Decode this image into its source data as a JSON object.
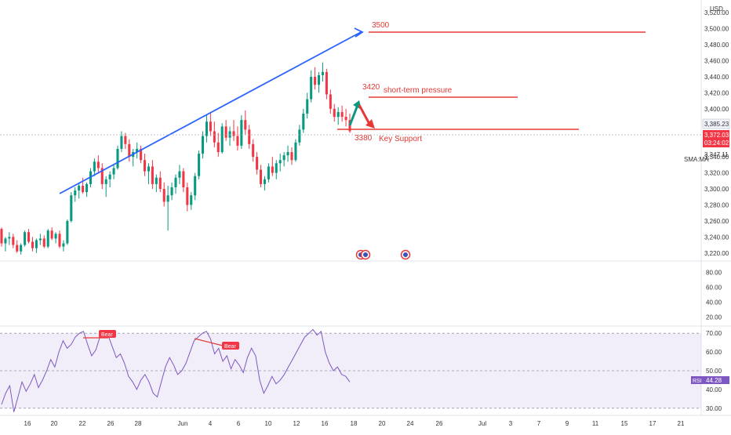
{
  "chart_data": {
    "type": "candlestick",
    "currency": "USD",
    "price_axis": {
      "ticks": [
        "3,520.00",
        "3,500.00",
        "3,480.00",
        "3,460.00",
        "3,440.00",
        "3,420.00",
        "3,400.00",
        "3,340.00",
        "3,320.00",
        "3,300.00",
        "3,280.00",
        "3,260.00",
        "3,240.00",
        "3,220.00"
      ],
      "tick_values": [
        3520,
        3500,
        3480,
        3460,
        3440,
        3420,
        3400,
        3340,
        3320,
        3300,
        3280,
        3260,
        3240,
        3220
      ],
      "range": [
        3210,
        3530
      ]
    },
    "price_labels": {
      "current": "3,385.23",
      "last": "3,372.03",
      "countdown": "03:24:02",
      "sma_value": "3,347.11",
      "sma_name": "SMA:MA"
    },
    "volume_axis": {
      "ticks": [
        "80.00",
        "60.00",
        "40.00",
        "20.00"
      ],
      "tick_values": [
        80,
        60,
        40,
        20
      ],
      "range": [
        10,
        90
      ]
    },
    "rsi_axis": {
      "ticks": [
        "70.00",
        "60.00",
        "50.00",
        "40.00",
        "30.00"
      ],
      "tick_values": [
        70,
        60,
        50,
        40,
        30
      ],
      "range": [
        27,
        73
      ]
    },
    "rsi_label": "RSI",
    "rsi_value": "44.28",
    "rsi_series": [
      32,
      38,
      42,
      28,
      36,
      44,
      39,
      43,
      48,
      41,
      45,
      50,
      56,
      52,
      60,
      66,
      62,
      64,
      68,
      70,
      71,
      64,
      58,
      61,
      68,
      71,
      69,
      63,
      57,
      59,
      54,
      47,
      44,
      40,
      45,
      48,
      44,
      38,
      36,
      44,
      52,
      57,
      53,
      48,
      50,
      54,
      60,
      66,
      68,
      70,
      71,
      67,
      59,
      62,
      55,
      58,
      51,
      56,
      53,
      49,
      57,
      62,
      58,
      45,
      38,
      42,
      47,
      43,
      45,
      48,
      52,
      56,
      60,
      64,
      68,
      70,
      72,
      69,
      71,
      60,
      54,
      50,
      52,
      48,
      47,
      44
    ],
    "x_axis": {
      "labels": [
        "16",
        "20",
        "22",
        "26",
        "28",
        "Jun",
        "4",
        "6",
        "10",
        "12",
        "16",
        "18",
        "20",
        "24",
        "26",
        "Jul",
        "3",
        "7",
        "9",
        "11",
        "15",
        "17",
        "21"
      ],
      "label_positions": [
        35,
        69,
        105,
        141,
        176,
        233,
        268,
        304,
        342,
        378,
        414,
        451,
        487,
        523,
        560,
        615,
        651,
        687,
        723,
        759,
        796,
        832,
        868
      ]
    },
    "annotations": {
      "level_3500": "3500",
      "level_3420": "3420",
      "label_3420": "short-term pressure",
      "level_3380": "3380",
      "label_3380": "Key Support",
      "bear_1": "Bear",
      "bear_2": "Bear"
    },
    "levels": [
      3502,
      3420,
      3386
    ],
    "trendline": {
      "from": [
        3295,
        "May 20"
      ],
      "to": [
        3502,
        "Jun 18"
      ]
    },
    "candles": [
      [
        3250,
        3252,
        3228,
        3232
      ],
      [
        3232,
        3240,
        3222,
        3238
      ],
      [
        3238,
        3246,
        3230,
        3240
      ],
      [
        3240,
        3244,
        3226,
        3230
      ],
      [
        3230,
        3236,
        3220,
        3222
      ],
      [
        3222,
        3232,
        3218,
        3230
      ],
      [
        3230,
        3248,
        3228,
        3246
      ],
      [
        3246,
        3250,
        3232,
        3234
      ],
      [
        3234,
        3240,
        3222,
        3226
      ],
      [
        3226,
        3238,
        3220,
        3236
      ],
      [
        3236,
        3244,
        3230,
        3238
      ],
      [
        3238,
        3242,
        3226,
        3228
      ],
      [
        3228,
        3250,
        3226,
        3248
      ],
      [
        3248,
        3252,
        3236,
        3238
      ],
      [
        3238,
        3246,
        3232,
        3244
      ],
      [
        3244,
        3248,
        3226,
        3228
      ],
      [
        3228,
        3236,
        3222,
        3232
      ],
      [
        3232,
        3262,
        3230,
        3260
      ],
      [
        3260,
        3296,
        3258,
        3292
      ],
      [
        3292,
        3302,
        3284,
        3298
      ],
      [
        3298,
        3308,
        3288,
        3304
      ],
      [
        3304,
        3314,
        3294,
        3296
      ],
      [
        3296,
        3308,
        3290,
        3306
      ],
      [
        3306,
        3326,
        3302,
        3322
      ],
      [
        3322,
        3338,
        3316,
        3334
      ],
      [
        3334,
        3342,
        3320,
        3326
      ],
      [
        3326,
        3332,
        3300,
        3306
      ],
      [
        3306,
        3316,
        3290,
        3312
      ],
      [
        3312,
        3322,
        3302,
        3318
      ],
      [
        3318,
        3330,
        3312,
        3326
      ],
      [
        3326,
        3354,
        3324,
        3350
      ],
      [
        3350,
        3372,
        3346,
        3366
      ],
      [
        3366,
        3370,
        3350,
        3356
      ],
      [
        3356,
        3362,
        3334,
        3340
      ],
      [
        3340,
        3350,
        3328,
        3346
      ],
      [
        3346,
        3358,
        3338,
        3350
      ],
      [
        3350,
        3354,
        3332,
        3336
      ],
      [
        3336,
        3344,
        3316,
        3322
      ],
      [
        3322,
        3332,
        3306,
        3328
      ],
      [
        3328,
        3336,
        3300,
        3306
      ],
      [
        3306,
        3318,
        3296,
        3314
      ],
      [
        3314,
        3322,
        3296,
        3300
      ],
      [
        3300,
        3308,
        3278,
        3284
      ],
      [
        3284,
        3304,
        3248,
        3292
      ],
      [
        3292,
        3308,
        3286,
        3302
      ],
      [
        3302,
        3318,
        3294,
        3314
      ],
      [
        3314,
        3330,
        3306,
        3322
      ],
      [
        3322,
        3326,
        3296,
        3302
      ],
      [
        3302,
        3308,
        3272,
        3280
      ],
      [
        3280,
        3296,
        3274,
        3292
      ],
      [
        3292,
        3320,
        3286,
        3316
      ],
      [
        3316,
        3348,
        3312,
        3344
      ],
      [
        3344,
        3372,
        3338,
        3366
      ],
      [
        3366,
        3392,
        3358,
        3384
      ],
      [
        3384,
        3396,
        3366,
        3372
      ],
      [
        3372,
        3384,
        3352,
        3358
      ],
      [
        3358,
        3370,
        3340,
        3346
      ],
      [
        3346,
        3382,
        3344,
        3378
      ],
      [
        3378,
        3386,
        3360,
        3364
      ],
      [
        3364,
        3378,
        3354,
        3372
      ],
      [
        3372,
        3386,
        3360,
        3366
      ],
      [
        3366,
        3378,
        3348,
        3354
      ],
      [
        3354,
        3392,
        3350,
        3386
      ],
      [
        3386,
        3398,
        3368,
        3374
      ],
      [
        3374,
        3380,
        3350,
        3356
      ],
      [
        3356,
        3362,
        3334,
        3340
      ],
      [
        3340,
        3346,
        3318,
        3324
      ],
      [
        3324,
        3330,
        3302,
        3306
      ],
      [
        3306,
        3316,
        3298,
        3312
      ],
      [
        3312,
        3332,
        3308,
        3328
      ],
      [
        3328,
        3340,
        3316,
        3320
      ],
      [
        3320,
        3336,
        3312,
        3332
      ],
      [
        3332,
        3344,
        3322,
        3336
      ],
      [
        3336,
        3346,
        3328,
        3342
      ],
      [
        3342,
        3354,
        3334,
        3346
      ],
      [
        3346,
        3352,
        3330,
        3336
      ],
      [
        3336,
        3362,
        3334,
        3358
      ],
      [
        3358,
        3380,
        3354,
        3374
      ],
      [
        3374,
        3400,
        3370,
        3394
      ],
      [
        3394,
        3420,
        3388,
        3412
      ],
      [
        3412,
        3448,
        3408,
        3440
      ],
      [
        3440,
        3452,
        3424,
        3430
      ],
      [
        3430,
        3446,
        3420,
        3442
      ],
      [
        3442,
        3458,
        3434,
        3446
      ],
      [
        3446,
        3450,
        3412,
        3418
      ],
      [
        3418,
        3424,
        3394,
        3400
      ],
      [
        3400,
        3406,
        3384,
        3390
      ],
      [
        3390,
        3402,
        3380,
        3396
      ],
      [
        3396,
        3404,
        3384,
        3390
      ],
      [
        3390,
        3400,
        3378,
        3386
      ],
      [
        3386,
        3394,
        3370,
        3372
      ]
    ]
  }
}
